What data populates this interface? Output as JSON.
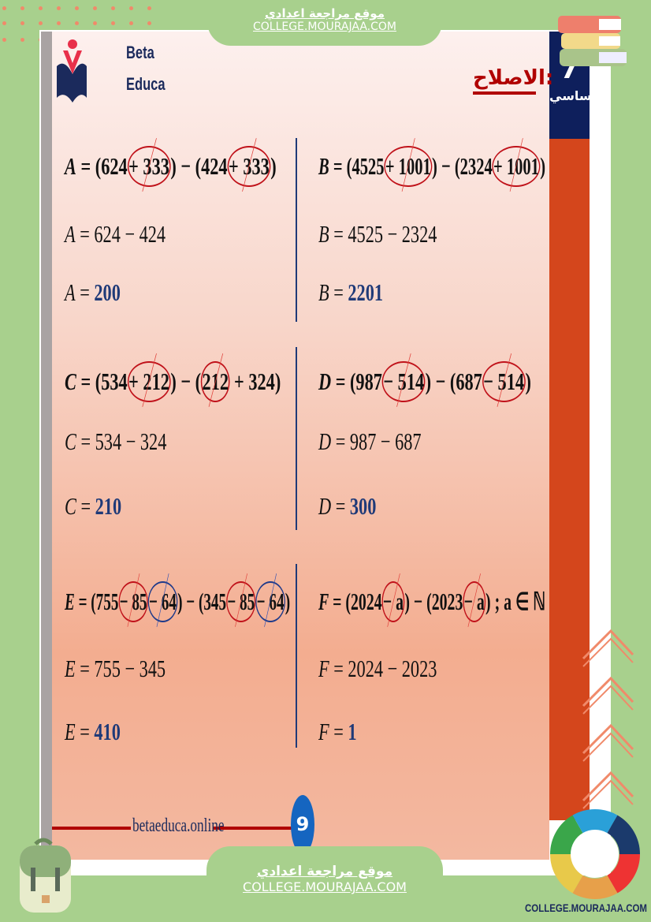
{
  "header": {
    "site_name_ar": "موقع مراجعة اعدادي",
    "site_url": "COLLEGE.MOURAJAA.COM"
  },
  "logo": {
    "line1": "Beta",
    "line2": "Educa"
  },
  "title": "الاصلاح:",
  "sidebar": {
    "grade": "7",
    "level": "اساسي"
  },
  "exercises": [
    {
      "id": "A",
      "col": "left",
      "row": 0,
      "lines": [
        [
          {
            "t": "A",
            "var": true
          },
          {
            "t": " = (624"
          },
          {
            "t": "+ 333",
            "c": "red"
          },
          {
            "t": ") − (424"
          },
          {
            "t": "+ 333",
            "c": "red"
          },
          {
            "t": ")"
          }
        ],
        [
          {
            "t": "A",
            "var": true
          },
          {
            "t": " = 624 − 424"
          }
        ],
        [
          {
            "t": "A",
            "var": true
          },
          {
            "t": " = "
          },
          {
            "t": "200",
            "res": true
          }
        ]
      ]
    },
    {
      "id": "B",
      "col": "right",
      "row": 0,
      "lines": [
        [
          {
            "t": "B",
            "var": true
          },
          {
            "t": " = (4525"
          },
          {
            "t": "+ 1001",
            "c": "red"
          },
          {
            "t": ") − (2324"
          },
          {
            "t": "+ 1001",
            "c": "red"
          },
          {
            "t": ")"
          }
        ],
        [
          {
            "t": "B",
            "var": true
          },
          {
            "t": " = 4525 − 2324"
          }
        ],
        [
          {
            "t": "B",
            "var": true
          },
          {
            "t": " = "
          },
          {
            "t": "2201",
            "res": true
          }
        ]
      ]
    },
    {
      "id": "C",
      "col": "left",
      "row": 1,
      "lines": [
        [
          {
            "t": "C",
            "var": true
          },
          {
            "t": " = (534"
          },
          {
            "t": "+ 212",
            "c": "red"
          },
          {
            "t": ") − ("
          },
          {
            "t": "212",
            "c": "red"
          },
          {
            "t": " + 324)"
          }
        ],
        [
          {
            "t": "C",
            "var": true
          },
          {
            "t": " = 534 − 324"
          }
        ],
        [
          {
            "t": "C",
            "var": true
          },
          {
            "t": " = "
          },
          {
            "t": "210",
            "res": true
          }
        ]
      ]
    },
    {
      "id": "D",
      "col": "right",
      "row": 1,
      "lines": [
        [
          {
            "t": "D",
            "var": true
          },
          {
            "t": " = (987"
          },
          {
            "t": "− 514",
            "c": "red"
          },
          {
            "t": ") − (687"
          },
          {
            "t": "− 514",
            "c": "red"
          },
          {
            "t": ")"
          }
        ],
        [
          {
            "t": "D",
            "var": true
          },
          {
            "t": " = 987 − 687"
          }
        ],
        [
          {
            "t": "D",
            "var": true
          },
          {
            "t": " = "
          },
          {
            "t": "300",
            "res": true
          }
        ]
      ]
    },
    {
      "id": "E",
      "col": "left",
      "row": 2,
      "lines": [
        [
          {
            "t": "E",
            "var": true
          },
          {
            "t": " = (755"
          },
          {
            "t": "− 85",
            "c": "red"
          },
          {
            "t": "− 64",
            "c": "blue"
          },
          {
            "t": ") − (345"
          },
          {
            "t": "− 85",
            "c": "red"
          },
          {
            "t": "− 64",
            "c": "blue"
          },
          {
            "t": ")"
          }
        ],
        [
          {
            "t": "E",
            "var": true
          },
          {
            "t": " = 755 − 345"
          }
        ],
        [
          {
            "t": "E",
            "var": true
          },
          {
            "t": " = "
          },
          {
            "t": "410",
            "res": true
          }
        ]
      ]
    },
    {
      "id": "F",
      "col": "right",
      "row": 2,
      "lines": [
        [
          {
            "t": "F",
            "var": true
          },
          {
            "t": " = (2024"
          },
          {
            "t": "− a",
            "c": "red"
          },
          {
            "t": ") − (2023"
          },
          {
            "t": "− a",
            "c": "red"
          },
          {
            "t": ")  ; a ∈ ℕ"
          }
        ],
        [
          {
            "t": "F",
            "var": true
          },
          {
            "t": " = 2024 − 2023"
          }
        ],
        [
          {
            "t": "F",
            "var": true
          },
          {
            "t": " = "
          },
          {
            "t": "1",
            "res": true
          }
        ]
      ]
    }
  ],
  "footer": {
    "website": "betaeduca.online",
    "page_number": "9",
    "badge_url": "COLLEGE.MOURAJAA.COM"
  },
  "colors": {
    "background_green": "#a8d08d",
    "navy": "#0e1f5c",
    "orange": "#d4461c",
    "result_blue": "#1f3a78",
    "circle_red": "#c0121a",
    "circle_blue": "#1f3a8a",
    "title_red": "#b00000"
  }
}
